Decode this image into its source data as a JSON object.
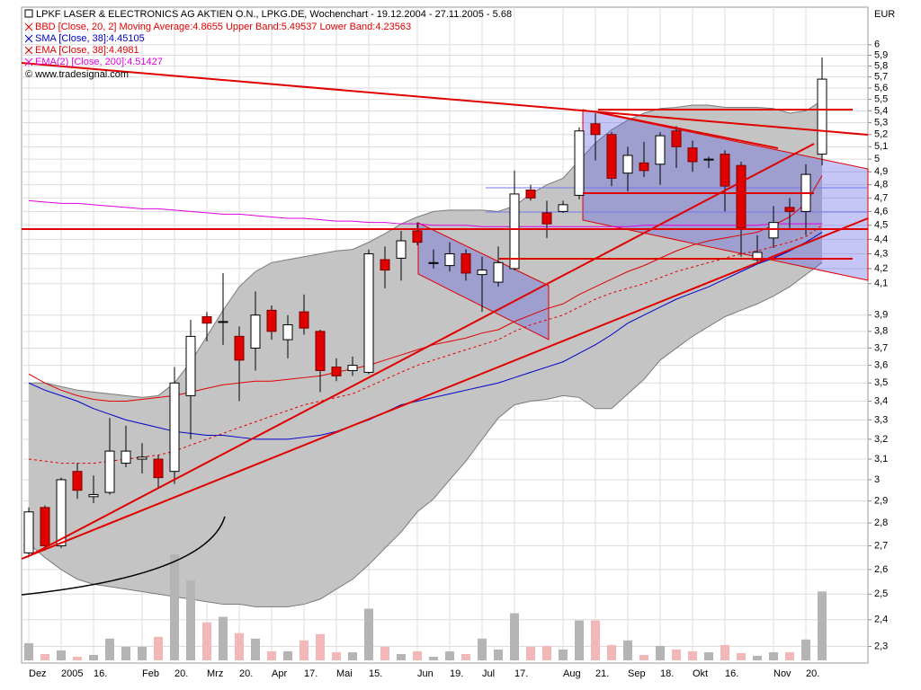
{
  "chart_data": {
    "type": "candlestick",
    "title": "LPKF LASER & ELECTRONICS AG AKTIEN O.N., LPKG.DE, Wochenchart - 19.12.2004 - 27.11.2005 - 5.68",
    "source": "© www.tradesignal.com",
    "y_label": "EUR",
    "log": true,
    "grid": true,
    "ylim": [
      2.24,
      6.37
    ],
    "yticks": [
      {
        "value": 2.3,
        "label": "2,3"
      },
      {
        "value": 2.4,
        "label": "2,4"
      },
      {
        "value": 2.5,
        "label": "2,5"
      },
      {
        "value": 2.6,
        "label": "2,6"
      },
      {
        "value": 2.7,
        "label": "2,7"
      },
      {
        "value": 2.8,
        "label": "2,8"
      },
      {
        "value": 2.9,
        "label": "2,9"
      },
      3,
      {
        "value": 3.1,
        "label": "3,1"
      },
      {
        "value": 3.2,
        "label": "3,2"
      },
      {
        "value": 3.3,
        "label": "3,3"
      },
      {
        "value": 3.4,
        "label": "3,4"
      },
      {
        "value": 3.5,
        "label": "3,5"
      },
      {
        "value": 3.6,
        "label": "3,6"
      },
      {
        "value": 3.7,
        "label": "3,7"
      },
      {
        "value": 3.8,
        "label": "3,8"
      },
      {
        "value": 3.9,
        "label": "3,9"
      },
      {
        "value": 4.1,
        "label": "4,1"
      },
      {
        "value": 4.2,
        "label": "4,2"
      },
      {
        "value": 4.3,
        "label": "4,3"
      },
      {
        "value": 4.4,
        "label": "4,4"
      },
      {
        "value": 4.5,
        "label": "4,5"
      },
      {
        "value": 4.6,
        "label": "4,6"
      },
      {
        "value": 4.7,
        "label": "4,7"
      },
      {
        "value": 4.8,
        "label": "4,8"
      },
      {
        "value": 4.9,
        "label": "4,9"
      },
      5,
      {
        "value": 5.1,
        "label": "5,1"
      },
      {
        "value": 5.2,
        "label": "5,2"
      },
      {
        "value": 5.3,
        "label": "5,3"
      },
      {
        "value": 5.4,
        "label": "5,4"
      },
      {
        "value": 5.5,
        "label": "5,5"
      },
      {
        "value": 5.6,
        "label": "5,6"
      },
      {
        "value": 5.7,
        "label": "5,7"
      },
      {
        "value": 5.8,
        "label": "5,8"
      },
      {
        "value": 5.9,
        "label": "5,9"
      },
      6
    ],
    "categories": [
      "Dez",
      null,
      "2005",
      null,
      "16.",
      null,
      null,
      "Feb",
      null,
      "20.",
      null,
      "Mrz",
      null,
      "20.",
      null,
      "Apr",
      null,
      "17.",
      null,
      "Mai",
      null,
      "15.",
      null,
      null,
      "Jun",
      null,
      "19.",
      null,
      "Jul",
      null,
      "17.",
      null,
      null,
      "Aug",
      null,
      "21.",
      null,
      "Sep",
      null,
      "18.",
      null,
      "Okt",
      null,
      "16.",
      null,
      null,
      "Nov",
      null,
      "20.",
      null
    ],
    "open": [
      2.67,
      2.87,
      2.7,
      3.04,
      2.92,
      2.94,
      3.08,
      3.1,
      3.1,
      3.04,
      3.43,
      3.89,
      3.86,
      3.77,
      3.7,
      3.93,
      3.75,
      3.92,
      3.8,
      3.59,
      3.57,
      3.56,
      4.26,
      4.27,
      4.46,
      4.24,
      4.22,
      4.3,
      4.16,
      4.11,
      4.2,
      4.76,
      4.59,
      4.6,
      4.72,
      5.29,
      5.2,
      4.89,
      4.97,
      4.96,
      5.23,
      5.09,
      5.0,
      5.04,
      4.95,
      4.26,
      4.41,
      4.63,
      4.6,
      5.04
    ],
    "high": [
      2.87,
      2.88,
      3.01,
      3.08,
      3.02,
      3.31,
      3.27,
      3.18,
      3.12,
      3.59,
      3.87,
      3.92,
      4.17,
      3.83,
      4.05,
      3.96,
      3.9,
      4.03,
      3.81,
      3.64,
      3.65,
      4.33,
      4.35,
      4.46,
      4.52,
      4.33,
      4.38,
      4.33,
      4.28,
      4.35,
      4.91,
      4.8,
      4.68,
      4.68,
      5.26,
      5.38,
      5.22,
      5.1,
      5.14,
      5.22,
      5.27,
      5.15,
      5.02,
      5.07,
      4.98,
      4.43,
      4.64,
      4.7,
      4.96,
      5.88
    ],
    "low": [
      2.66,
      2.68,
      2.69,
      2.91,
      2.89,
      2.93,
      3.06,
      3.03,
      2.96,
      2.98,
      3.2,
      3.74,
      3.72,
      3.4,
      3.57,
      3.75,
      3.64,
      3.78,
      3.45,
      3.51,
      3.54,
      3.55,
      4.07,
      4.12,
      4.36,
      4.2,
      4.18,
      4.12,
      3.92,
      4.08,
      4.19,
      4.68,
      4.41,
      4.59,
      4.69,
      4.99,
      4.79,
      4.75,
      4.86,
      4.8,
      4.93,
      4.9,
      4.93,
      4.6,
      4.28,
      4.24,
      4.34,
      4.48,
      4.43,
      4.95
    ],
    "close": [
      2.85,
      2.7,
      3.0,
      2.95,
      2.93,
      3.14,
      3.14,
      3.11,
      3.01,
      3.5,
      3.77,
      3.85,
      3.86,
      3.63,
      3.9,
      3.8,
      3.84,
      3.82,
      3.57,
      3.54,
      3.6,
      4.3,
      4.19,
      4.39,
      4.38,
      4.24,
      4.3,
      4.17,
      4.19,
      4.24,
      4.73,
      4.7,
      4.51,
      4.65,
      5.23,
      5.2,
      4.85,
      5.03,
      4.91,
      5.19,
      5.1,
      4.98,
      5.0,
      4.79,
      4.48,
      4.31,
      4.52,
      4.6,
      4.88,
      5.68
    ],
    "up_color": "#ffffff",
    "down_color": "#e00000",
    "volume": [
      19,
      7,
      11,
      4,
      6,
      24,
      15,
      15,
      26,
      117,
      88,
      42,
      48,
      30,
      24,
      10,
      10,
      22,
      29,
      9,
      9,
      57,
      15,
      7,
      10,
      4,
      10,
      7,
      24,
      12,
      52,
      15,
      16,
      12,
      44,
      44,
      17,
      22,
      6,
      16,
      12,
      10,
      9,
      17,
      8,
      5,
      9,
      9,
      23,
      76
    ],
    "volume_up_color": "#b4b4b4",
    "volume_down_color": "#f2b8b8",
    "series": [
      {
        "name": "BBD [Close, 20, 2] Moving Average:4.8655 Upper Band:5.49537 Lower Band:4.23563",
        "color": "#e00000",
        "band_fill": "#c4c4c4",
        "band_edge": "#7a7a7a",
        "values": [
          3.55,
          3.5,
          3.46,
          3.43,
          3.41,
          3.4,
          3.4,
          3.41,
          3.42,
          3.43,
          3.45,
          3.47,
          3.49,
          3.5,
          3.51,
          3.51,
          3.52,
          3.53,
          3.54,
          3.56,
          3.58,
          3.6,
          3.63,
          3.66,
          3.69,
          3.72,
          3.74,
          3.76,
          3.79,
          3.81,
          3.86,
          3.9,
          3.94,
          3.97,
          4.03,
          4.08,
          4.13,
          4.18,
          4.22,
          4.27,
          4.32,
          4.36,
          4.39,
          4.41,
          4.43,
          4.45,
          4.5,
          4.56,
          4.66,
          4.87
        ],
        "upper": [
          3.5,
          3.5,
          3.48,
          3.46,
          3.45,
          3.44,
          3.43,
          3.42,
          3.43,
          3.5,
          3.62,
          3.77,
          3.93,
          4.08,
          4.18,
          4.24,
          4.26,
          4.28,
          4.3,
          4.32,
          4.33,
          4.38,
          4.44,
          4.51,
          4.56,
          4.6,
          4.61,
          4.61,
          4.61,
          4.6,
          4.64,
          4.73,
          4.8,
          4.85,
          4.99,
          5.13,
          5.24,
          5.32,
          5.38,
          5.42,
          5.43,
          5.45,
          5.45,
          5.43,
          5.43,
          5.43,
          5.42,
          5.38,
          5.4,
          5.49
        ],
        "lower": [
          2.71,
          2.65,
          2.6,
          2.56,
          2.54,
          2.53,
          2.52,
          2.51,
          2.5,
          2.49,
          2.48,
          2.47,
          2.46,
          2.46,
          2.45,
          2.45,
          2.45,
          2.46,
          2.48,
          2.52,
          2.56,
          2.62,
          2.69,
          2.76,
          2.85,
          2.91,
          3.0,
          3.09,
          3.2,
          3.31,
          3.38,
          3.4,
          3.41,
          3.43,
          3.42,
          3.36,
          3.36,
          3.44,
          3.52,
          3.63,
          3.7,
          3.77,
          3.83,
          3.89,
          3.93,
          3.97,
          4.02,
          4.08,
          4.16,
          4.24
        ]
      },
      {
        "name": "SMA [Close, 38]:4.45105",
        "color": "#0000c8",
        "values": [
          3.5,
          3.46,
          3.43,
          3.4,
          3.36,
          3.33,
          3.3,
          3.28,
          3.26,
          3.24,
          3.23,
          3.22,
          3.22,
          3.21,
          3.2,
          3.2,
          3.2,
          3.21,
          3.22,
          3.24,
          3.27,
          3.3,
          3.34,
          3.38,
          3.4,
          3.42,
          3.44,
          3.46,
          3.48,
          3.5,
          3.53,
          3.56,
          3.59,
          3.62,
          3.67,
          3.72,
          3.78,
          3.85,
          3.9,
          3.95,
          4.0,
          4.04,
          4.08,
          4.13,
          4.18,
          4.23,
          4.27,
          4.32,
          4.38,
          4.45
        ]
      },
      {
        "name": "EMA [Close, 38]:4.4981",
        "color": "#e00000",
        "dashed": true,
        "values": [
          3.1,
          3.09,
          3.08,
          3.08,
          3.08,
          3.09,
          3.1,
          3.11,
          3.12,
          3.14,
          3.17,
          3.2,
          3.23,
          3.26,
          3.29,
          3.32,
          3.35,
          3.38,
          3.4,
          3.42,
          3.44,
          3.48,
          3.52,
          3.56,
          3.6,
          3.63,
          3.66,
          3.69,
          3.72,
          3.75,
          3.8,
          3.84,
          3.87,
          3.9,
          3.95,
          4.0,
          4.04,
          4.07,
          4.1,
          4.14,
          4.18,
          4.21,
          4.24,
          4.27,
          4.3,
          4.32,
          4.35,
          4.38,
          4.42,
          4.5
        ]
      },
      {
        "name": "EMA(2) [Close, 200]:4.51427",
        "color": "#e000e0",
        "values": [
          4.68,
          4.67,
          4.66,
          4.66,
          4.65,
          4.64,
          4.63,
          4.62,
          4.62,
          4.61,
          4.6,
          4.59,
          4.58,
          4.58,
          4.57,
          4.56,
          4.55,
          4.55,
          4.54,
          4.53,
          4.53,
          4.52,
          4.52,
          4.51,
          4.51,
          4.5,
          4.5,
          4.5,
          4.49,
          4.49,
          4.49,
          4.49,
          4.49,
          4.49,
          4.49,
          4.49,
          4.49,
          4.49,
          4.5,
          4.5,
          4.5,
          4.5,
          4.5,
          4.5,
          4.5,
          4.5,
          4.51,
          4.51,
          4.51,
          4.51
        ]
      }
    ]
  }
}
